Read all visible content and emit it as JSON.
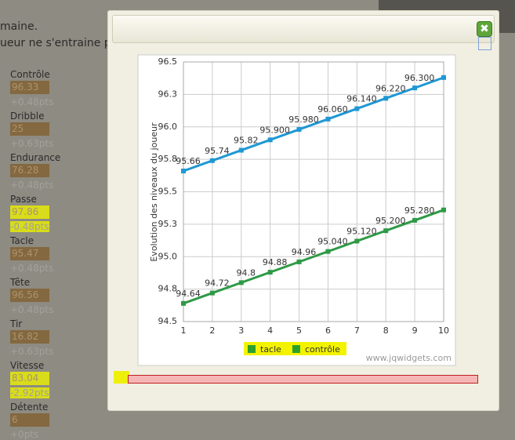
{
  "background": {
    "lines": [
      "maine.",
      "ueur ne s'entraine pa"
    ],
    "skills": [
      {
        "name": "Contrôle",
        "value": "96.33",
        "delta": "+0.48pts"
      },
      {
        "name": "Dribble",
        "value": "25",
        "delta": "+0.63pts"
      },
      {
        "name": "Endurance",
        "value": "76.28",
        "delta": "+0.48pts"
      },
      {
        "name": "Passe",
        "value": "97.86",
        "delta": "-0.48pts"
      },
      {
        "name": "Tacle",
        "value": "95.47",
        "delta": "+0.48pts"
      },
      {
        "name": "Tête",
        "value": "96.56",
        "delta": "+0.48pts"
      },
      {
        "name": "Tir",
        "value": "16.82",
        "delta": "+0.63pts"
      },
      {
        "name": "Vitesse",
        "value": "83.04",
        "delta": "-2.92pts"
      },
      {
        "name": "Détente",
        "value": "6",
        "delta": "+0pts"
      }
    ]
  },
  "chart_data": {
    "type": "line",
    "y_label": "Evolution des niveaux du joueur",
    "watermark": "www.jqwidgets.com",
    "x": [
      1,
      2,
      3,
      4,
      5,
      6,
      7,
      8,
      9,
      10
    ],
    "xlim": [
      1,
      10
    ],
    "xticks": [
      1,
      2,
      3,
      4,
      5,
      6,
      7,
      8,
      9,
      10
    ],
    "ylim": [
      94.5,
      96.5
    ],
    "yticks": [
      94.5,
      {
        "value": 94.75,
        "label": "94.8"
      },
      {
        "value": 95,
        "label": "95.0"
      },
      {
        "value": 95.25,
        "label": "95.3"
      },
      95.5,
      {
        "value": 95.75,
        "label": "95.8"
      },
      {
        "value": 96,
        "label": "96.0"
      },
      {
        "value": 96.25,
        "label": "96.3"
      },
      96.5
    ],
    "grid": true,
    "legend_marker_color": "#2ca02c",
    "series": [
      {
        "name": "tacle",
        "color": "#2e9a46",
        "values": [
          94.64,
          94.72,
          94.8,
          94.88,
          94.96,
          95.04,
          95.12,
          95.2,
          95.28,
          95.36
        ],
        "value_labels": [
          "94.64",
          "94.72",
          "94.8",
          "94.88",
          "94.96",
          "95.040",
          "95.120",
          "95.200",
          "95.280",
          null
        ]
      },
      {
        "name": "contrôle",
        "color": "#1f98d4",
        "values": [
          95.66,
          95.74,
          95.82,
          95.9,
          95.98,
          96.06,
          96.14,
          96.22,
          96.3,
          96.38
        ],
        "value_labels": [
          "95.66",
          "95.74",
          "95.82",
          "95.900",
          "95.980",
          "96.060",
          "96.140",
          "96.220",
          "96.300",
          null
        ]
      }
    ]
  }
}
